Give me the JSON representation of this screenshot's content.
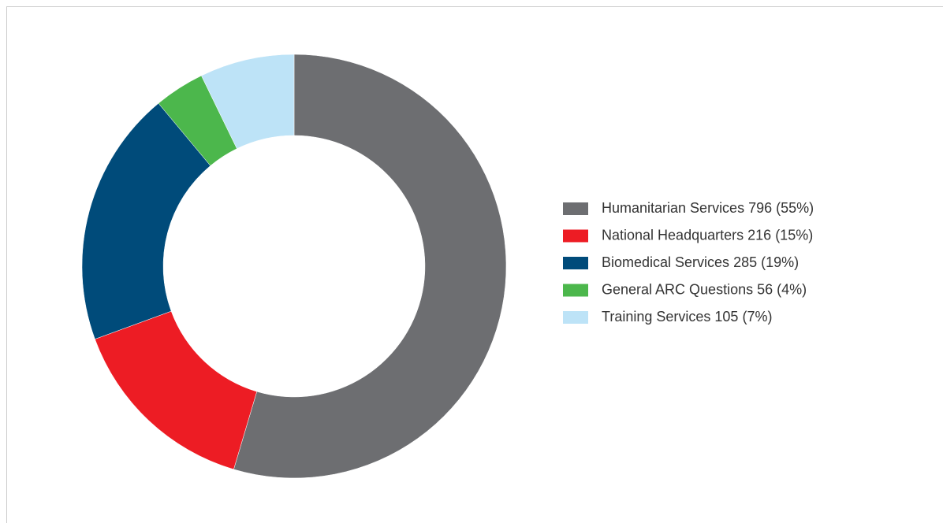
{
  "chart_data": {
    "type": "donut",
    "categories": [
      "Humanitarian Services",
      "National Headquarters",
      "Biomedical Services",
      "General ARC Questions",
      "Training Services"
    ],
    "values": [
      796,
      216,
      285,
      56,
      105
    ],
    "share_labels": [
      "(55%)",
      "(15%)",
      "(19%)",
      "(4%)",
      "(7%)"
    ],
    "colors": [
      "#6d6e71",
      "#ed1c24",
      "#004b7a",
      "#4cb74c",
      "#bde3f7"
    ],
    "legend": "right"
  }
}
